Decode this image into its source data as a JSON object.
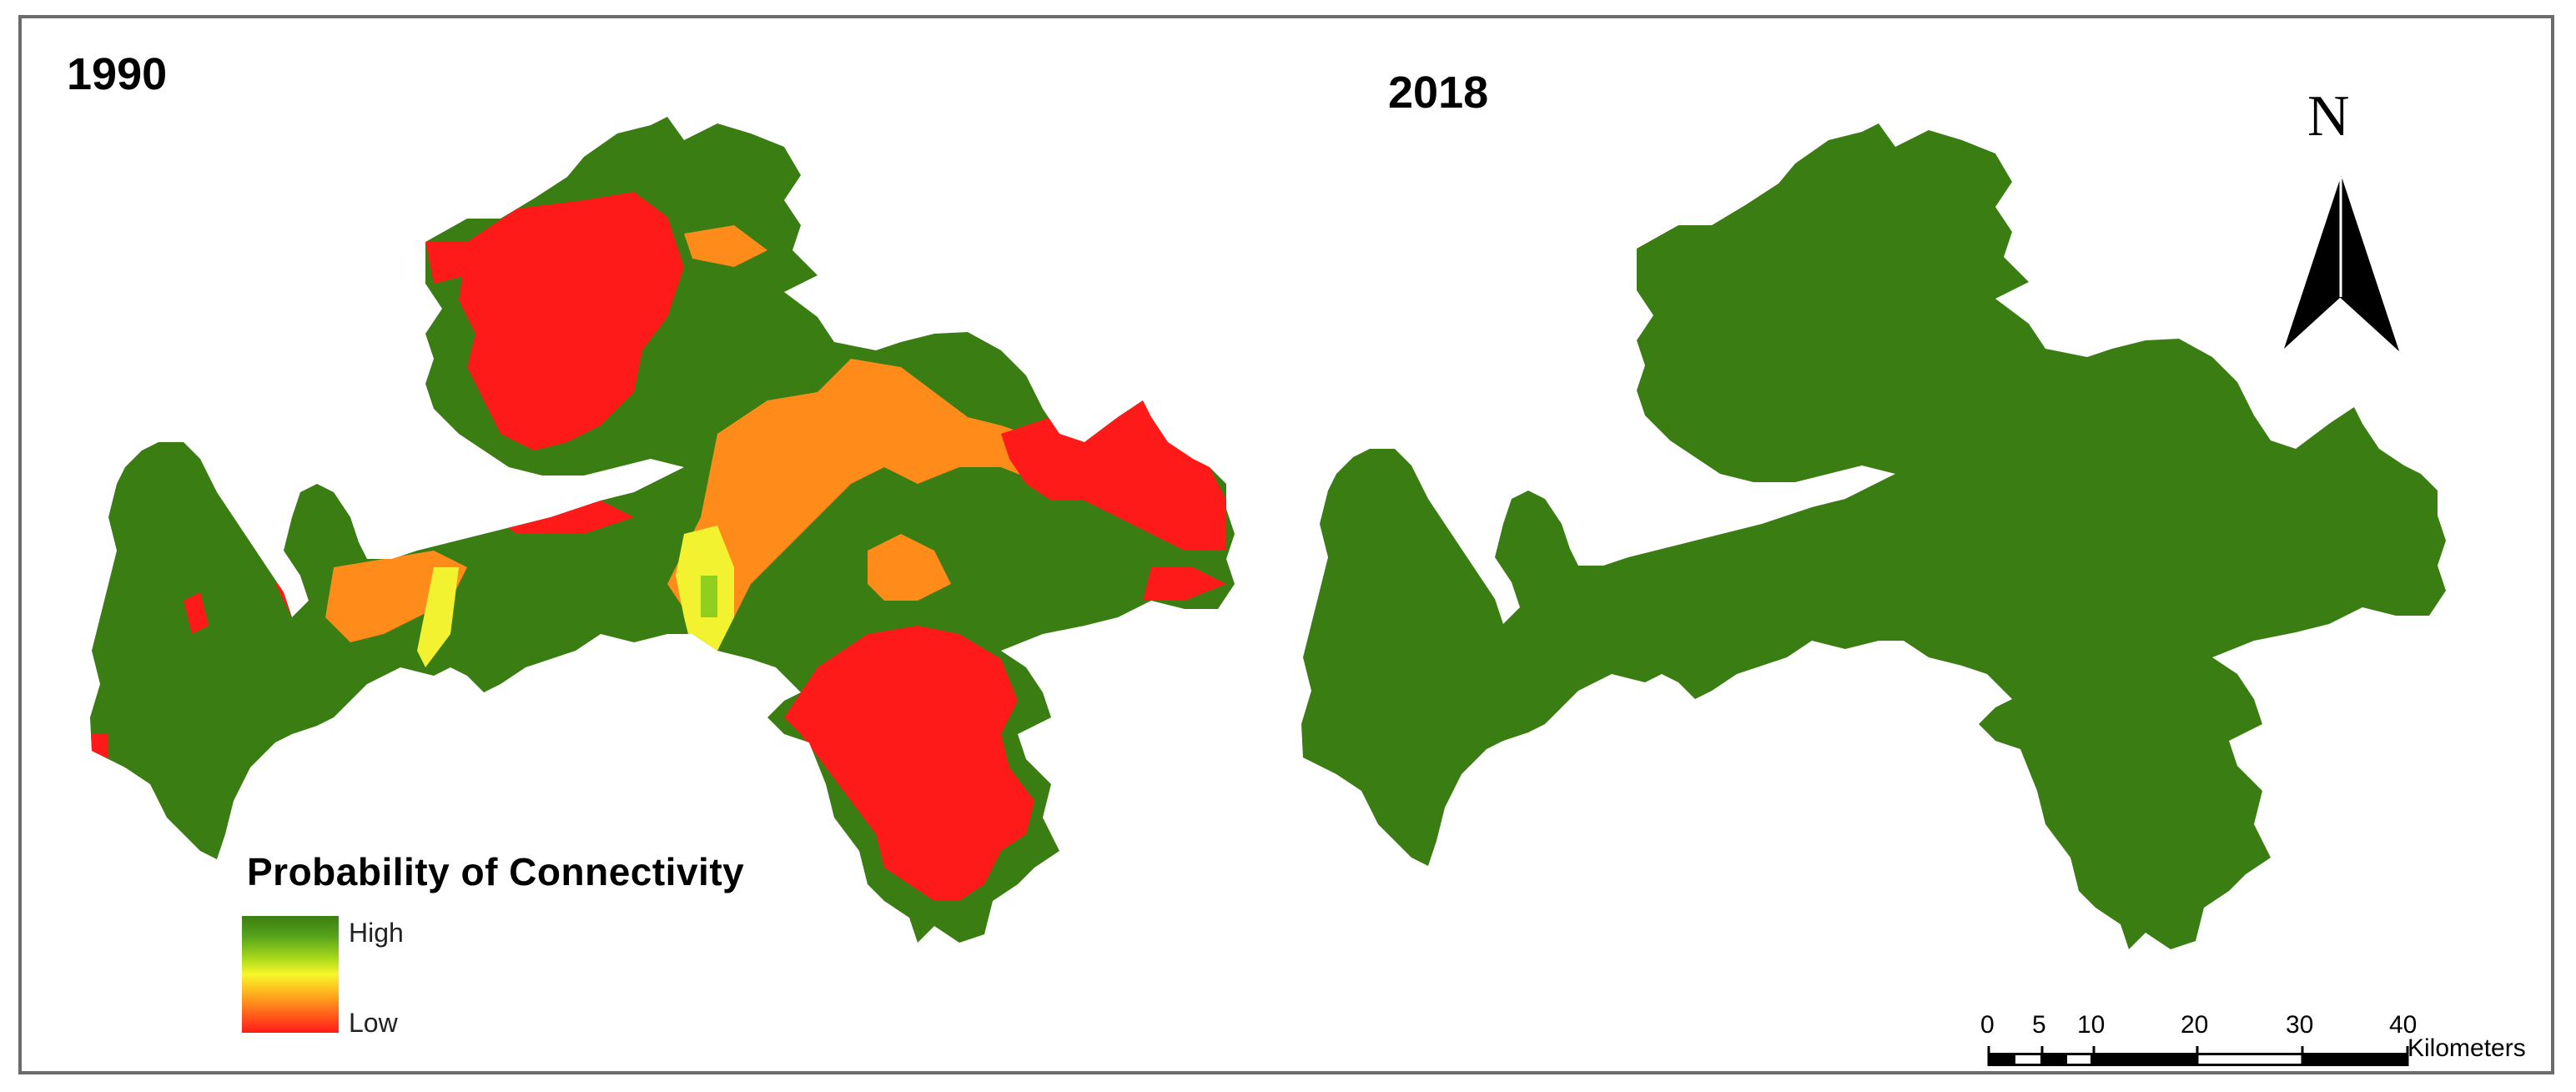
{
  "panels": {
    "left_title": "1990",
    "right_title": "2018"
  },
  "legend": {
    "title": "Probability of Connectivity",
    "high_label": "High",
    "low_label": "Low",
    "colors": [
      "#3a7d12",
      "#a8d81a",
      "#f7f72a",
      "#ff8c1a",
      "#ff1a1a"
    ]
  },
  "north_arrow": {
    "label": "N",
    "icon": "north-arrow-icon"
  },
  "scale_bar": {
    "ticks": [
      "0",
      "5",
      "10",
      "20",
      "30",
      "40"
    ],
    "units": "Kilometers"
  },
  "class_colors": {
    "high": "#3a7d12",
    "medium": "#ff8c1a",
    "medium_high": "#f2f230",
    "low": "#ff1a1a"
  }
}
